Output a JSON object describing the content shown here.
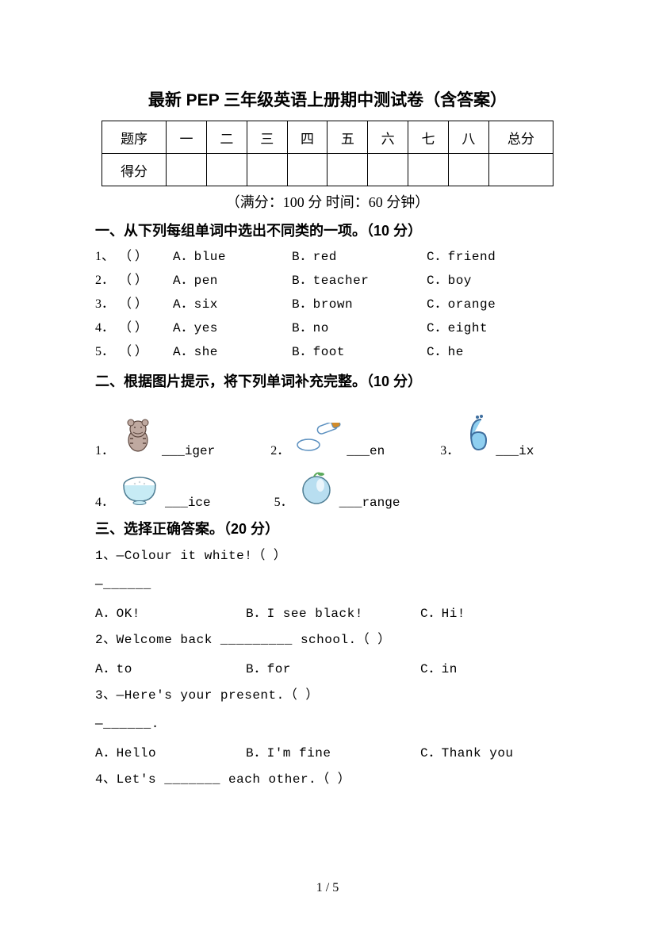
{
  "title": "最新 PEP 三年级英语上册期中测试卷（含答案）",
  "score_table": {
    "row1": [
      "题序",
      "一",
      "二",
      "三",
      "四",
      "五",
      "六",
      "七",
      "八",
      "总分"
    ],
    "row2_label": "得分"
  },
  "subinfo": "（满分：100 分    时间：60 分钟）",
  "section1": {
    "heading": "一、从下列每组单词中选出不同类的一项。（10 分）",
    "rows": [
      {
        "n": "1、",
        "A": "A．blue",
        "B": "B．red",
        "C": "C．friend"
      },
      {
        "n": "2．",
        "A": "A．pen",
        "B": "B．teacher",
        "C": "C．boy"
      },
      {
        "n": "3．",
        "A": "A．six",
        "B": "B．brown",
        "C": "C．orange"
      },
      {
        "n": "4．",
        "A": "A．yes",
        "B": "B．no",
        "C": "C．eight"
      },
      {
        "n": "5．",
        "A": "A．she",
        "B": "B．foot",
        "C": "C．he"
      }
    ],
    "blank": "（   ）"
  },
  "section2": {
    "heading": "二、根据图片提示，将下列单词补充完整。（10 分）",
    "items": [
      {
        "n": "1．",
        "word": "___iger",
        "icon": "tiger"
      },
      {
        "n": "2．",
        "word": "___en",
        "icon": "pen"
      },
      {
        "n": "3．",
        "word": "___ix",
        "icon": "six"
      },
      {
        "n": "4．",
        "word": "___ice",
        "icon": "rice"
      },
      {
        "n": "5．",
        "word": "___range",
        "icon": "orange"
      }
    ]
  },
  "section3": {
    "heading": "三、选择正确答案。（20 分）",
    "items": [
      {
        "q_lines": [
          "1、—Colour it white!（   ）",
          "—______"
        ],
        "opts": {
          "A": "A．OK!",
          "B": "B．I see black!",
          "C": "C．Hi!"
        }
      },
      {
        "q_lines": [
          "2、Welcome back _________ school.（   ）"
        ],
        "opts": {
          "A": "A．to",
          "B": "B．for",
          "C": "C．in"
        }
      },
      {
        "q_lines": [
          "3、—Here's your present.（   ）",
          "—______."
        ],
        "opts": {
          "A": "A．Hello",
          "B": "B．I'm fine",
          "C": "C．Thank you"
        }
      },
      {
        "q_lines": [
          "4、Let's _______ each other.（   ）"
        ],
        "opts": null
      }
    ]
  },
  "footer": "1 / 5",
  "icons": {
    "tiger": {
      "bg": "#bfa9a0",
      "accent": "#5b453d"
    },
    "pen": {
      "body": "#ffffff",
      "outline": "#5a8fbf",
      "cap": "#d18b2b"
    },
    "six": {
      "fill": "#8fcff0",
      "outline": "#3e6e9e"
    },
    "rice": {
      "bowl": "#c7ebf5",
      "rice": "#ffffff",
      "outline": "#4f7e94"
    },
    "orange": {
      "fill": "#b8def0",
      "outline": "#4f7e94",
      "leaf": "#5caa5c"
    }
  }
}
